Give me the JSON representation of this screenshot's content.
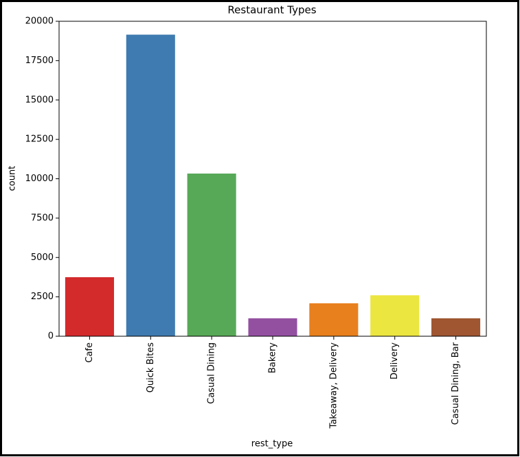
{
  "chart_data": {
    "type": "bar",
    "title": "Restaurant Types",
    "x_label": "rest_type",
    "y_label": "count",
    "categories": [
      "Cafe",
      "Quick Bites",
      "Casual Dining",
      "Bakery",
      "Takeaway, Delivery",
      "Delivery",
      "Casual Dining, Bar"
    ],
    "values": [
      3750,
      19150,
      10330,
      1140,
      2090,
      2600,
      1140
    ],
    "colors": [
      "#d32a2c",
      "#3f7bb0",
      "#57a957",
      "#9350a1",
      "#e8801d",
      "#ece640",
      "#9f5631"
    ],
    "ylim": [
      0,
      20000
    ],
    "yticks": [
      0,
      2500,
      5000,
      7500,
      10000,
      12500,
      15000,
      17500,
      20000
    ],
    "grid": false
  }
}
